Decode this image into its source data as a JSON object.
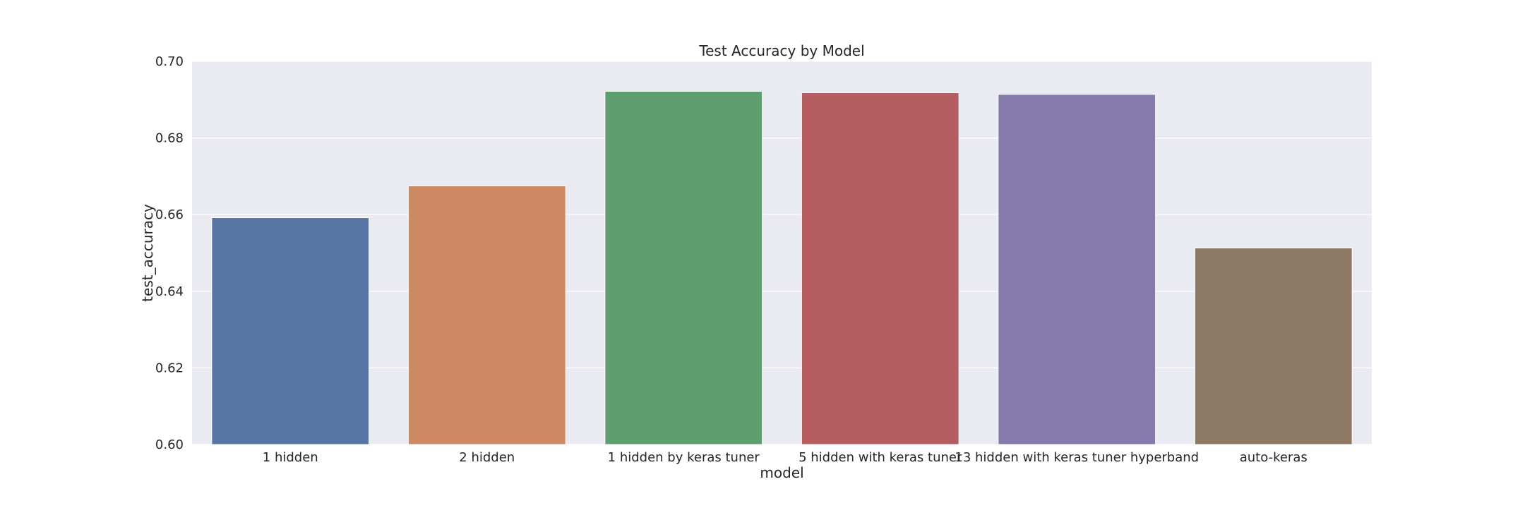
{
  "chart_data": {
    "type": "bar",
    "title": "Test Accuracy by Model",
    "xlabel": "model",
    "ylabel": "test_accuracy",
    "categories": [
      "1 hidden",
      "2 hidden",
      "1 hidden by keras tuner",
      "5 hidden with keras tuner",
      "13 hidden with keras tuner hyperband",
      "auto-keras"
    ],
    "values": [
      0.6592,
      0.6675,
      0.6922,
      0.6918,
      0.6914,
      0.6513
    ],
    "ylim": [
      0.6,
      0.7
    ],
    "yticks": [
      "0.60",
      "0.62",
      "0.64",
      "0.66",
      "0.68",
      "0.70"
    ],
    "ytick_values": [
      0.6,
      0.62,
      0.64,
      0.66,
      0.68,
      0.7
    ],
    "grid": true,
    "legend": "none",
    "colors": {
      "background": "#eaeaf2",
      "grid": "#ffffff",
      "bars": [
        "#5975a4",
        "#cc8963",
        "#5f9e6e",
        "#b55d60",
        "#857aab",
        "#8d7866"
      ]
    }
  }
}
